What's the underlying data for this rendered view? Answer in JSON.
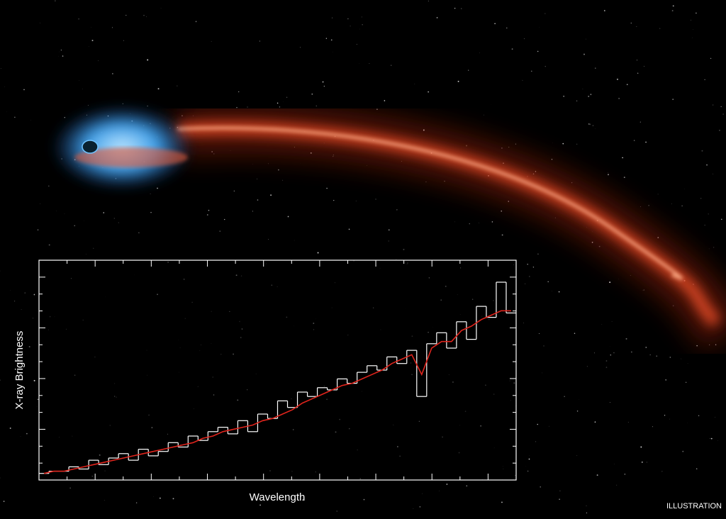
{
  "chart_data": {
    "type": "line",
    "xlabel": "Wavelength",
    "ylabel": "X-ray Brightness",
    "credit": "ILLUSTRATION",
    "ylim": [
      0,
      100
    ],
    "series": [
      {
        "color": "#ffffff",
        "step": true,
        "values": [
          3,
          4,
          4,
          6,
          5,
          9,
          7,
          10,
          12,
          9,
          14,
          11,
          13,
          17,
          15,
          20,
          18,
          22,
          24,
          21,
          27,
          22,
          30,
          28,
          36,
          33,
          40,
          38,
          42,
          41,
          46,
          44,
          49,
          52,
          50,
          56,
          53,
          59,
          38,
          62,
          67,
          60,
          72,
          64,
          79,
          74,
          90,
          76
        ]
      },
      {
        "color": "#e0241c",
        "step": false,
        "values": [
          3,
          4,
          4,
          5,
          6,
          7,
          8,
          9,
          10,
          11,
          12,
          13,
          14,
          15,
          16,
          17,
          19,
          20,
          22,
          23,
          24,
          25,
          27,
          28,
          30,
          32,
          35,
          37,
          39,
          41,
          43,
          44,
          46,
          48,
          50,
          53,
          55,
          57,
          48,
          60,
          63,
          63,
          68,
          70,
          73,
          75,
          77,
          77
        ]
      }
    ]
  }
}
